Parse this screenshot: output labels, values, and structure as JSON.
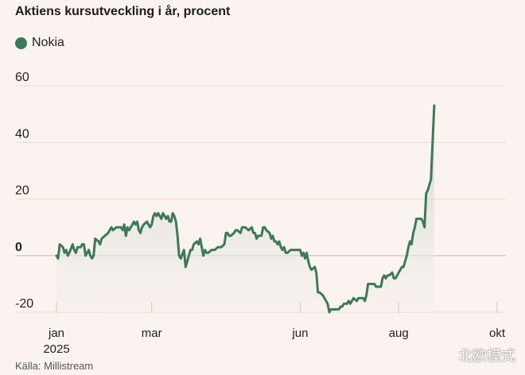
{
  "chart_data": {
    "type": "line",
    "title": "Aktiens kursutveckling i år, procent",
    "source": "Källa: Millistream",
    "legend": [
      {
        "name": "Nokia",
        "color": "#3c7a56"
      }
    ],
    "year_label": "2025",
    "y_ticks": [
      60,
      40,
      20,
      0,
      -20
    ],
    "ylim": [
      -20,
      60
    ],
    "x_ticks": [
      {
        "label": "jan",
        "day": 0
      },
      {
        "label": "mar",
        "day": 59
      },
      {
        "label": "jun",
        "day": 151
      },
      {
        "label": "aug",
        "day": 212
      },
      {
        "label": "okt",
        "day": 273
      }
    ],
    "series": [
      {
        "name": "Nokia",
        "color": "#3c7a56",
        "points": [
          [
            0,
            0
          ],
          [
            1,
            -1
          ],
          [
            2,
            4
          ],
          [
            4,
            3
          ],
          [
            5,
            1
          ],
          [
            6,
            2
          ],
          [
            7,
            0
          ],
          [
            8,
            1
          ],
          [
            10,
            4
          ],
          [
            11,
            2
          ],
          [
            12,
            1
          ],
          [
            13,
            3
          ],
          [
            15,
            3
          ],
          [
            16,
            4
          ],
          [
            17,
            4
          ],
          [
            18,
            0
          ],
          [
            19,
            1
          ],
          [
            20,
            2
          ],
          [
            21,
            0
          ],
          [
            22,
            -1
          ],
          [
            23,
            0
          ],
          [
            24,
            6
          ],
          [
            26,
            5
          ],
          [
            27,
            4
          ],
          [
            28,
            6
          ],
          [
            30,
            7
          ],
          [
            32,
            8
          ],
          [
            34,
            10
          ],
          [
            35,
            9
          ],
          [
            37,
            10
          ],
          [
            38,
            10
          ],
          [
            40,
            10
          ],
          [
            41,
            9
          ],
          [
            42,
            11
          ],
          [
            43,
            7
          ],
          [
            44,
            10
          ],
          [
            45,
            9
          ],
          [
            47,
            11
          ],
          [
            48,
            12
          ],
          [
            49,
            11
          ],
          [
            50,
            12
          ],
          [
            51,
            9
          ],
          [
            52,
            8
          ],
          [
            53,
            10
          ],
          [
            54,
            11
          ],
          [
            56,
            12
          ],
          [
            57,
            11
          ],
          [
            58,
            10
          ],
          [
            59,
            11
          ],
          [
            60,
            14
          ],
          [
            61,
            15
          ],
          [
            62,
            14
          ],
          [
            63,
            15
          ],
          [
            64,
            14
          ],
          [
            65,
            13
          ],
          [
            66,
            15
          ],
          [
            67,
            14
          ],
          [
            68,
            13
          ],
          [
            69,
            14
          ],
          [
            70,
            12
          ],
          [
            71,
            12
          ],
          [
            72,
            15
          ],
          [
            73,
            14
          ],
          [
            74,
            12
          ],
          [
            75,
            7
          ],
          [
            76,
            0
          ],
          [
            77,
            -1
          ],
          [
            79,
            2
          ],
          [
            80,
            -4
          ],
          [
            81,
            -2
          ],
          [
            82,
            0
          ],
          [
            83,
            2
          ],
          [
            84,
            2
          ],
          [
            85,
            4
          ],
          [
            87,
            5
          ],
          [
            88,
            4
          ],
          [
            89,
            6
          ],
          [
            90,
            3
          ],
          [
            91,
            0
          ],
          [
            92,
            2
          ],
          [
            93,
            1
          ],
          [
            94,
            1
          ],
          [
            96,
            2
          ],
          [
            98,
            2
          ],
          [
            100,
            3
          ],
          [
            102,
            3
          ],
          [
            104,
            4
          ],
          [
            105,
            8
          ],
          [
            106,
            8
          ],
          [
            107,
            7
          ],
          [
            108,
            7
          ],
          [
            110,
            8
          ],
          [
            111,
            9
          ],
          [
            112,
            9
          ],
          [
            114,
            8
          ],
          [
            115,
            10
          ],
          [
            116,
            10
          ],
          [
            117,
            10
          ],
          [
            119,
            9
          ],
          [
            121,
            10
          ],
          [
            122,
            8
          ],
          [
            123,
            8
          ],
          [
            124,
            6
          ],
          [
            125,
            7
          ],
          [
            127,
            7
          ],
          [
            128,
            10
          ],
          [
            129,
            10
          ],
          [
            130,
            9
          ],
          [
            132,
            8
          ],
          [
            133,
            6
          ],
          [
            134,
            7
          ],
          [
            135,
            5
          ],
          [
            136,
            5
          ],
          [
            137,
            4
          ],
          [
            138,
            5
          ],
          [
            139,
            3
          ],
          [
            140,
            2
          ],
          [
            141,
            3
          ],
          [
            142,
            1
          ],
          [
            143,
            1
          ],
          [
            145,
            2
          ],
          [
            147,
            2
          ],
          [
            149,
            2
          ],
          [
            151,
            2
          ],
          [
            152,
            0
          ],
          [
            153,
            1
          ],
          [
            154,
            -1
          ],
          [
            155,
            1
          ],
          [
            156,
            -2
          ],
          [
            157,
            -4
          ],
          [
            158,
            -5
          ],
          [
            160,
            -4
          ],
          [
            161,
            -6
          ],
          [
            162,
            -13
          ],
          [
            163,
            -13
          ],
          [
            165,
            -14
          ],
          [
            166,
            -15
          ],
          [
            167,
            -16
          ],
          [
            168,
            -17
          ],
          [
            169,
            -20
          ],
          [
            170,
            -19
          ],
          [
            171,
            -19
          ],
          [
            173,
            -19
          ],
          [
            175,
            -19
          ],
          [
            176,
            -18
          ],
          [
            177,
            -18
          ],
          [
            178,
            -17
          ],
          [
            180,
            -17
          ],
          [
            181,
            -16
          ],
          [
            182,
            -17
          ],
          [
            183,
            -16
          ],
          [
            184,
            -15
          ],
          [
            186,
            -16
          ],
          [
            187,
            -15
          ],
          [
            188,
            -15
          ],
          [
            190,
            -15
          ],
          [
            191,
            -16
          ],
          [
            192,
            -14
          ],
          [
            193,
            -10
          ],
          [
            194,
            -10
          ],
          [
            196,
            -10
          ],
          [
            197,
            -10
          ],
          [
            198,
            -11
          ],
          [
            199,
            -11
          ],
          [
            201,
            -11
          ],
          [
            202,
            -8
          ],
          [
            203,
            -7
          ],
          [
            204,
            -8
          ],
          [
            205,
            -7
          ],
          [
            206,
            -7
          ],
          [
            208,
            -6
          ],
          [
            209,
            -8
          ],
          [
            210,
            -8
          ],
          [
            211,
            -7
          ],
          [
            212,
            -6
          ],
          [
            213,
            -5
          ],
          [
            214,
            -4
          ],
          [
            215,
            -4
          ],
          [
            216,
            -2
          ],
          [
            217,
            0
          ],
          [
            218,
            3
          ],
          [
            219,
            5
          ],
          [
            220,
            4
          ],
          [
            221,
            8
          ],
          [
            222,
            10
          ],
          [
            223,
            13
          ],
          [
            224,
            13
          ],
          [
            226,
            13
          ],
          [
            227,
            12
          ],
          [
            228,
            10
          ],
          [
            229,
            22
          ],
          [
            230,
            23
          ],
          [
            231,
            25
          ],
          [
            232,
            27
          ],
          [
            233,
            40
          ],
          [
            234,
            53
          ]
        ]
      }
    ]
  }
}
